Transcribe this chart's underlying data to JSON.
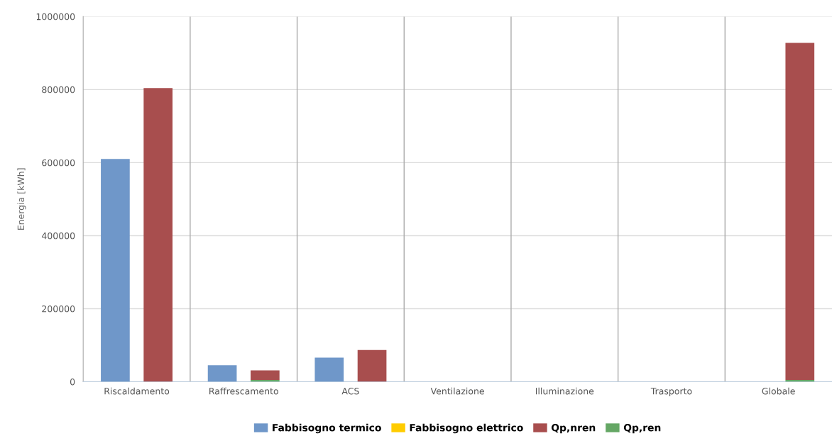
{
  "chart_data": {
    "type": "bar",
    "ylabel": "Energia [kWh]",
    "categories": [
      "Riscaldamento",
      "Raffrescamento",
      "ACS",
      "Ventilazione",
      "Illuminazione",
      "Trasporto",
      "Globale"
    ],
    "series": [
      {
        "name": "Fabbisogno termico",
        "color": "#6f97c9",
        "values": [
          610000,
          45000,
          66000,
          null,
          null,
          null,
          null
        ]
      },
      {
        "name": "Fabbisogno elettrico",
        "color": "#ffcc00",
        "values": [
          null,
          null,
          null,
          null,
          null,
          null,
          null
        ]
      },
      {
        "name": "Qp,nren",
        "color": "#a84e4e",
        "base": [
          0,
          5000,
          0,
          null,
          null,
          null,
          5000
        ],
        "values": [
          804000,
          26000,
          87000,
          null,
          null,
          null,
          923000
        ]
      },
      {
        "name": "Qp,ren",
        "color": "#65a765",
        "values": [
          null,
          5000,
          null,
          null,
          null,
          null,
          5000
        ]
      }
    ],
    "ylim": [
      0,
      1000000
    ],
    "yticks": [
      0,
      200000,
      400000,
      600000,
      800000,
      1000000
    ],
    "grid": true,
    "legend": "bottom"
  }
}
